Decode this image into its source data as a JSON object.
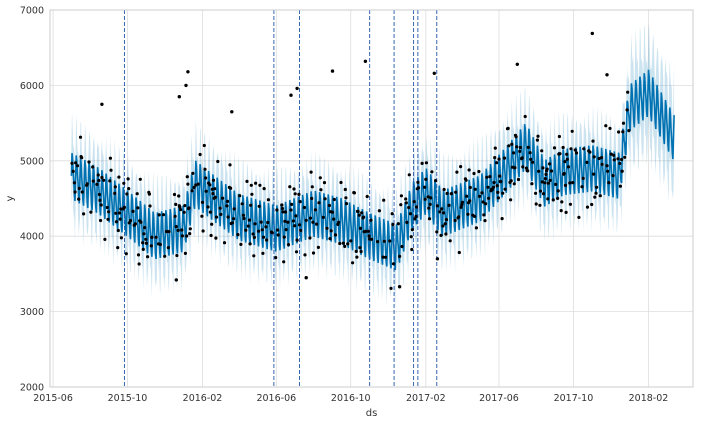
{
  "chart_data": {
    "type": "line",
    "title": "",
    "xlabel": "ds",
    "ylabel": "y",
    "ylim": [
      2000,
      7000
    ],
    "xlim": [
      "2015-05-27",
      "2018-04-15"
    ],
    "yticks": [
      2000,
      3000,
      4000,
      5000,
      6000,
      7000
    ],
    "xticks": [
      {
        "date": "2015-06-01",
        "label": "2015-06"
      },
      {
        "date": "2015-10-01",
        "label": "2015-10"
      },
      {
        "date": "2016-02-01",
        "label": "2016-02"
      },
      {
        "date": "2016-06-01",
        "label": "2016-06"
      },
      {
        "date": "2016-10-01",
        "label": "2016-10"
      },
      {
        "date": "2017-02-01",
        "label": "2017-02"
      },
      {
        "date": "2017-06-01",
        "label": "2017-06"
      },
      {
        "date": "2017-10-01",
        "label": "2017-10"
      },
      {
        "date": "2018-02-01",
        "label": "2018-02"
      }
    ],
    "grid": true,
    "changepoints": [
      "2015-09-26",
      "2016-05-28",
      "2016-07-09",
      "2016-11-01",
      "2016-12-11",
      "2017-01-12",
      "2017-01-19",
      "2017-02-19"
    ],
    "series": [
      {
        "name": "forecast (yhat)",
        "color": "#0072B2",
        "start": "2015-07-01",
        "end": "2018-03-15"
      },
      {
        "name": "uncertainty interval",
        "color": "#0072B2",
        "opacity": 0.2
      },
      {
        "name": "observed (y)",
        "color": "#000000",
        "start": "2015-07-01",
        "end": "2017-12-31"
      }
    ],
    "trend_knots": [
      {
        "date": "2015-07-01",
        "value": 4800
      },
      {
        "date": "2015-08-15",
        "value": 4600
      },
      {
        "date": "2015-10-01",
        "value": 4300
      },
      {
        "date": "2015-11-15",
        "value": 4000
      },
      {
        "date": "2016-01-01",
        "value": 4100
      },
      {
        "date": "2016-01-20",
        "value": 4700
      },
      {
        "date": "2016-02-20",
        "value": 4500
      },
      {
        "date": "2016-04-01",
        "value": 4250
      },
      {
        "date": "2016-06-01",
        "value": 4100
      },
      {
        "date": "2016-08-01",
        "value": 4300
      },
      {
        "date": "2016-09-15",
        "value": 4200
      },
      {
        "date": "2016-11-01",
        "value": 4000
      },
      {
        "date": "2016-12-15",
        "value": 3850
      },
      {
        "date": "2017-01-10",
        "value": 4400
      },
      {
        "date": "2017-02-01",
        "value": 4600
      },
      {
        "date": "2017-03-01",
        "value": 4300
      },
      {
        "date": "2017-05-01",
        "value": 4500
      },
      {
        "date": "2017-06-15",
        "value": 4900
      },
      {
        "date": "2017-07-15",
        "value": 5200
      },
      {
        "date": "2017-08-15",
        "value": 4700
      },
      {
        "date": "2017-09-15",
        "value": 4850
      },
      {
        "date": "2017-11-01",
        "value": 4900
      },
      {
        "date": "2017-12-15",
        "value": 4800
      },
      {
        "date": "2018-01-01",
        "value": 5700
      },
      {
        "date": "2018-02-01",
        "value": 5900
      },
      {
        "date": "2018-03-15",
        "value": 5300
      }
    ],
    "weekly_amplitude": 280,
    "interval_halfwidth": 430,
    "outliers": [
      {
        "date": "2015-08-20",
        "value": 5750
      },
      {
        "date": "2015-12-25",
        "value": 5850
      },
      {
        "date": "2016-01-05",
        "value": 6000
      },
      {
        "date": "2016-01-08",
        "value": 6180
      },
      {
        "date": "2016-03-20",
        "value": 5650
      },
      {
        "date": "2016-06-25",
        "value": 5870
      },
      {
        "date": "2016-07-05",
        "value": 5960
      },
      {
        "date": "2016-09-01",
        "value": 6190
      },
      {
        "date": "2016-10-25",
        "value": 6320
      },
      {
        "date": "2017-02-15",
        "value": 6160
      },
      {
        "date": "2017-07-01",
        "value": 6280
      },
      {
        "date": "2017-11-01",
        "value": 6690
      },
      {
        "date": "2017-11-25",
        "value": 6140
      },
      {
        "date": "2015-12-20",
        "value": 3420
      },
      {
        "date": "2016-07-20",
        "value": 3450
      },
      {
        "date": "2016-12-20",
        "value": 3330
      },
      {
        "date": "2017-02-20",
        "value": 3700
      }
    ]
  }
}
